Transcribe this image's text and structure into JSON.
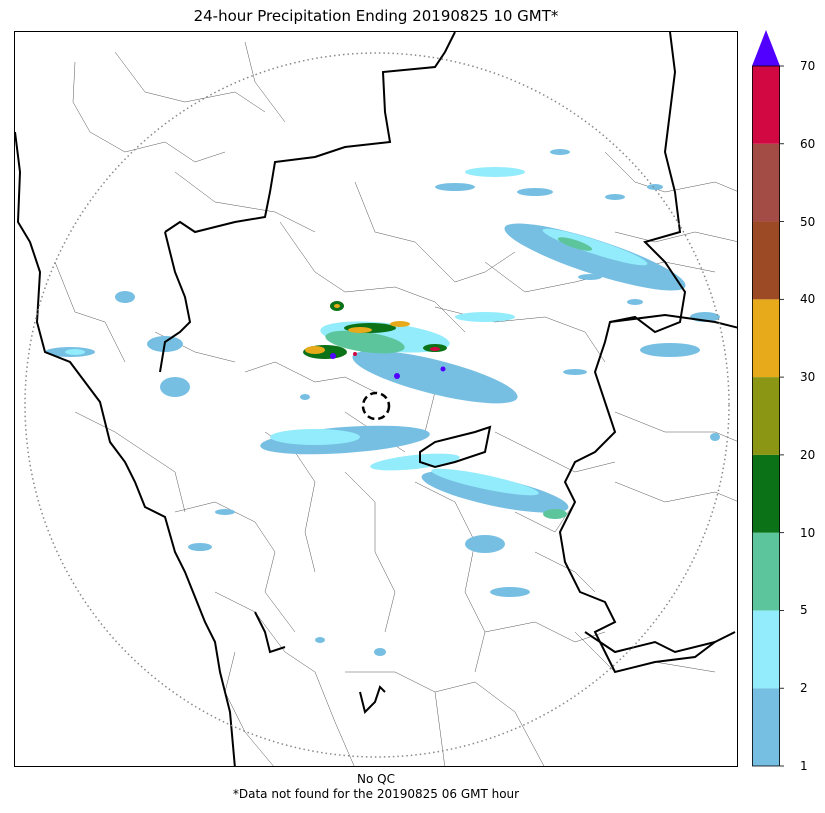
{
  "title": "24-hour Precipitation Ending 20190825 10 GMT*",
  "footer": {
    "qc_text": "No QC",
    "note": "*Data not found for the 20190825 06 GMT hour"
  },
  "colorbar": {
    "levels": [
      {
        "label": "1",
        "color": "#76bfe3"
      },
      {
        "label": "2",
        "color": "#92ecfb"
      },
      {
        "label": "5",
        "color": "#5dc59c"
      },
      {
        "label": "10",
        "color": "#0c7218"
      },
      {
        "label": "20",
        "color": "#8a9614"
      },
      {
        "label": "30",
        "color": "#e6aa1a"
      },
      {
        "label": "40",
        "color": "#9c4a25"
      },
      {
        "label": "50",
        "color": "#a34b45"
      },
      {
        "label": "60",
        "color": "#d20843"
      },
      {
        "label": "70",
        "color": ""
      }
    ],
    "extend_color": "#5100ff"
  }
}
